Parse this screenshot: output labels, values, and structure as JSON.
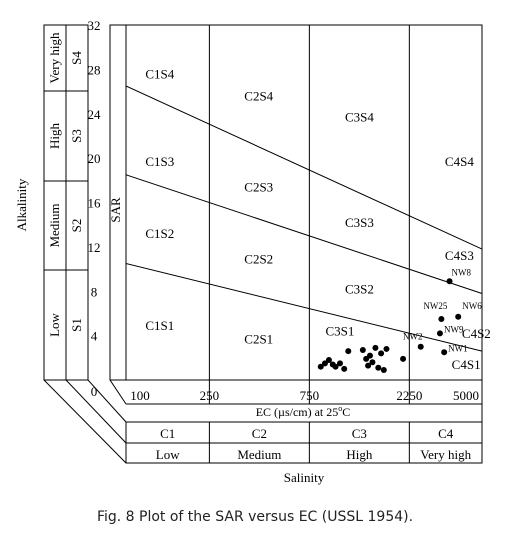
{
  "caption": "Fig. 8 Plot of the SAR versus EC (USSL 1954).",
  "chart_data": {
    "type": "scatter",
    "title": "",
    "xlabel": "EC (µs/cm) at 25°C",
    "xlabel_main": "EC (µs/cm) at 25",
    "xlabel_sup": "o",
    "xlabel_tail": "C",
    "ylabel": "SAR",
    "x_scale": "log",
    "x_ticks": [
      "100",
      "250",
      "750",
      "2250",
      "5000"
    ],
    "x_class_boundaries": [
      250,
      750,
      2250
    ],
    "y_ticks": [
      "0",
      "4",
      "8",
      "12",
      "16",
      "20",
      "24",
      "28",
      "32"
    ],
    "ylim": [
      0,
      32
    ],
    "salinity": {
      "title": "Salinity",
      "classes": [
        "C1",
        "C2",
        "C3",
        "C4"
      ],
      "levels": [
        "Low",
        "Medium",
        "High",
        "Very high"
      ]
    },
    "alkalinity": {
      "title": "Alkalinity",
      "classes": [
        "S1",
        "S2",
        "S3",
        "S4"
      ],
      "levels": [
        "Low",
        "Medium",
        "High",
        "Very high"
      ]
    },
    "zone_labels": [
      {
        "text": "C1S4",
        "ec": 145,
        "sar": 27.2
      },
      {
        "text": "C2S4",
        "ec": 430,
        "sar": 25.2
      },
      {
        "text": "C3S4",
        "ec": 1300,
        "sar": 23.3
      },
      {
        "text": "C4S4",
        "ec": 3900,
        "sar": 19.3
      },
      {
        "text": "C1S3",
        "ec": 145,
        "sar": 19.3
      },
      {
        "text": "C2S3",
        "ec": 430,
        "sar": 17.0
      },
      {
        "text": "C3S3",
        "ec": 1300,
        "sar": 13.8
      },
      {
        "text": "C4S3",
        "ec": 3900,
        "sar": 10.8
      },
      {
        "text": "C1S2",
        "ec": 145,
        "sar": 12.8
      },
      {
        "text": "C2S2",
        "ec": 430,
        "sar": 10.5
      },
      {
        "text": "C3S2",
        "ec": 1300,
        "sar": 7.8
      },
      {
        "text": "C4S2",
        "ec": 4700,
        "sar": 3.8
      },
      {
        "text": "C1S1",
        "ec": 145,
        "sar": 4.5
      },
      {
        "text": "C2S1",
        "ec": 430,
        "sar": 3.3
      },
      {
        "text": "C3S1",
        "ec": 1050,
        "sar": 4.0
      },
      {
        "text": "C4S1",
        "ec": 4200,
        "sar": 1.0
      }
    ],
    "boundary_lines": [
      {
        "from": {
          "ec": 100,
          "sar": 26.5
        },
        "to": {
          "ec": 5000,
          "sar": 11.8
        }
      },
      {
        "from": {
          "ec": 100,
          "sar": 18.5
        },
        "to": {
          "ec": 5000,
          "sar": 7.8
        }
      },
      {
        "from": {
          "ec": 100,
          "sar": 10.5
        },
        "to": {
          "ec": 5000,
          "sar": 2.6
        }
      }
    ],
    "points": [
      {
        "label": "NW8",
        "ec": 3500,
        "sar": 8.9
      },
      {
        "label": "NW6",
        "ec": 3850,
        "sar": 5.7
      },
      {
        "label": "NW25",
        "ec": 3200,
        "sar": 5.5
      },
      {
        "label": "NW9",
        "ec": 3150,
        "sar": 4.2
      },
      {
        "label": "NW1",
        "ec": 3300,
        "sar": 2.5
      },
      {
        "label": "NW2",
        "ec": 2550,
        "sar": 3.0
      },
      {
        "label": "",
        "ec": 2100,
        "sar": 1.9
      },
      {
        "label": "",
        "ec": 850,
        "sar": 1.2
      },
      {
        "label": "",
        "ec": 890,
        "sar": 1.5
      },
      {
        "label": "",
        "ec": 930,
        "sar": 1.8
      },
      {
        "label": "",
        "ec": 970,
        "sar": 1.4
      },
      {
        "label": "",
        "ec": 1000,
        "sar": 1.2
      },
      {
        "label": "",
        "ec": 1050,
        "sar": 1.5
      },
      {
        "label": "",
        "ec": 1100,
        "sar": 1.0
      },
      {
        "label": "",
        "ec": 1150,
        "sar": 2.6
      },
      {
        "label": "",
        "ec": 1350,
        "sar": 2.7
      },
      {
        "label": "",
        "ec": 1400,
        "sar": 1.9
      },
      {
        "label": "",
        "ec": 1430,
        "sar": 1.3
      },
      {
        "label": "",
        "ec": 1460,
        "sar": 2.2
      },
      {
        "label": "",
        "ec": 1500,
        "sar": 1.6
      },
      {
        "label": "",
        "ec": 1550,
        "sar": 2.9
      },
      {
        "label": "",
        "ec": 1600,
        "sar": 1.1
      },
      {
        "label": "",
        "ec": 1650,
        "sar": 2.4
      },
      {
        "label": "",
        "ec": 1700,
        "sar": 0.9
      },
      {
        "label": "",
        "ec": 1750,
        "sar": 2.8
      }
    ]
  }
}
